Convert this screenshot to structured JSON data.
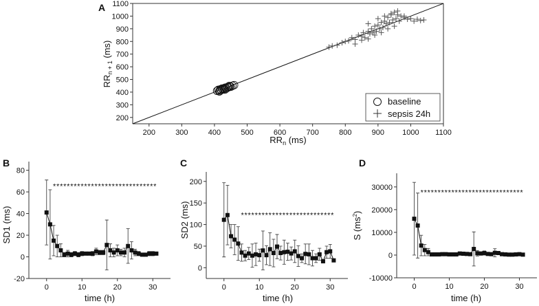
{
  "chart_data": [
    {
      "id": "A",
      "type": "scatter",
      "panel_label": "A",
      "xlabel_main": "RR",
      "xlabel_sub": "n",
      "xlabel_unit": " (ms)",
      "ylabel_main": "RR",
      "ylabel_sub": "n + 1",
      "ylabel_unit": " (ms)",
      "xlim": [
        150,
        1100
      ],
      "ylim": [
        150,
        1100
      ],
      "xticks": [
        200,
        300,
        400,
        500,
        600,
        700,
        800,
        900,
        1000,
        1100
      ],
      "yticks": [
        200,
        300,
        400,
        500,
        600,
        700,
        800,
        900,
        1000,
        1100
      ],
      "identity_line": true,
      "legend": {
        "placement": "bottom-right",
        "entries": [
          "baseline",
          "sepsis 24h"
        ]
      },
      "series": [
        {
          "name": "baseline",
          "marker": "circle",
          "x": [
            408,
            412,
            415,
            418,
            420,
            423,
            425,
            428,
            430,
            433,
            436,
            440,
            443,
            447,
            450,
            455,
            460,
            416,
            432,
            445
          ],
          "y": [
            410,
            418,
            405,
            422,
            415,
            428,
            420,
            430,
            425,
            435,
            428,
            440,
            438,
            445,
            442,
            450,
            455,
            412,
            420,
            448
          ]
        },
        {
          "name": "sepsis 24h",
          "marker": "plus",
          "x": [
            750,
            760,
            775,
            790,
            800,
            810,
            820,
            830,
            840,
            850,
            855,
            860,
            870,
            875,
            880,
            885,
            890,
            895,
            900,
            905,
            910,
            915,
            920,
            925,
            930,
            935,
            940,
            945,
            950,
            955,
            960,
            965,
            970,
            980,
            990,
            1000,
            1010,
            1020,
            1030,
            1040,
            830,
            850,
            870,
            890,
            910,
            930,
            950,
            870,
            900,
            920,
            940,
            960,
            980
          ],
          "y": [
            755,
            765,
            770,
            790,
            800,
            805,
            830,
            815,
            850,
            840,
            870,
            830,
            880,
            860,
            900,
            870,
            920,
            880,
            930,
            900,
            950,
            910,
            960,
            940,
            990,
            950,
            1010,
            970,
            1030,
            980,
            1040,
            960,
            1000,
            990,
            975,
            980,
            960,
            975,
            965,
            970,
            780,
            810,
            820,
            850,
            870,
            900,
            920,
            940,
            980,
            1000,
            1020,
            1010,
            1000
          ]
        }
      ]
    },
    {
      "id": "B",
      "type": "line",
      "panel_label": "B",
      "xlabel": "time (h)",
      "ylabel": "SD1 (ms)",
      "xlim": [
        -5,
        35
      ],
      "ylim": [
        -20,
        88
      ],
      "xticks": [
        0,
        10,
        20,
        30
      ],
      "yticks": [
        -20,
        0,
        20,
        40,
        60,
        80
      ],
      "significance": "******************************",
      "sig_from": 1.8,
      "sig_y": 66,
      "x": [
        0,
        1,
        2,
        3,
        4,
        5,
        6,
        7,
        8,
        9,
        10,
        11,
        12,
        13,
        14,
        15,
        16,
        17,
        18,
        19,
        20,
        21,
        22,
        23,
        24,
        25,
        26,
        27,
        28,
        29,
        30,
        31
      ],
      "y": [
        41,
        30,
        15,
        10,
        6,
        2,
        3,
        2,
        3,
        2,
        3,
        3,
        3,
        3,
        5,
        4,
        4,
        11,
        6,
        4,
        6,
        4,
        4,
        10,
        6,
        4,
        3,
        2,
        2,
        3,
        3,
        3
      ],
      "err": [
        30,
        32,
        14,
        10,
        6,
        2,
        3,
        2,
        2,
        2,
        2,
        1,
        1,
        2,
        3,
        2,
        2,
        23,
        6,
        4,
        5,
        3,
        4,
        16,
        8,
        3,
        2,
        1,
        1,
        2,
        2,
        1
      ]
    },
    {
      "id": "C",
      "type": "line",
      "panel_label": "C",
      "xlabel": "time (h)",
      "ylabel": "SD2 (ms)",
      "xlim": [
        -5,
        35
      ],
      "ylim": [
        -25,
        222
      ],
      "xticks": [
        0,
        10,
        20,
        30
      ],
      "yticks": [
        0,
        50,
        100,
        150,
        200
      ],
      "significance": "***************************",
      "sig_from": 4.8,
      "sig_y": 124,
      "x": [
        0,
        1,
        2,
        3,
        4,
        5,
        6,
        7,
        8,
        9,
        10,
        11,
        12,
        13,
        14,
        15,
        16,
        17,
        18,
        19,
        20,
        21,
        22,
        23,
        24,
        25,
        26,
        27,
        28,
        29,
        30,
        31
      ],
      "y": [
        111,
        122,
        73,
        65,
        56,
        35,
        28,
        33,
        28,
        31,
        29,
        40,
        29,
        43,
        34,
        49,
        34,
        36,
        37,
        33,
        38,
        27,
        22,
        32,
        31,
        22,
        22,
        31,
        15,
        36,
        38,
        17
      ],
      "err": [
        86,
        69,
        27,
        35,
        39,
        20,
        12,
        14,
        27,
        26,
        14,
        45,
        22,
        38,
        32,
        28,
        16,
        28,
        20,
        15,
        26,
        24,
        10,
        23,
        24,
        18,
        10,
        14,
        4,
        14,
        16,
        0
      ]
    },
    {
      "id": "D",
      "type": "line",
      "panel_label": "D",
      "xlabel": "time (h)",
      "ylabel_main": "S (ms",
      "ylabel_sup": "2",
      "ylabel_end": ")",
      "xlim": [
        -5,
        35
      ],
      "ylim": [
        -10000,
        36000
      ],
      "xticks": [
        0,
        10,
        20,
        30
      ],
      "yticks": [
        -10000,
        0,
        10000,
        20000,
        30000
      ],
      "significance": "******************************",
      "sig_from": 1.8,
      "sig_y": 28000,
      "x": [
        0,
        1,
        2,
        3,
        4,
        5,
        6,
        7,
        8,
        9,
        10,
        11,
        12,
        13,
        14,
        15,
        16,
        17,
        18,
        19,
        20,
        21,
        22,
        23,
        24,
        25,
        26,
        27,
        28,
        29,
        30,
        31
      ],
      "y": [
        16000,
        13000,
        4200,
        2200,
        1300,
        300,
        300,
        300,
        400,
        400,
        300,
        300,
        300,
        700,
        600,
        500,
        400,
        2700,
        800,
        700,
        900,
        500,
        400,
        1000,
        900,
        400,
        300,
        200,
        200,
        300,
        400,
        200
      ],
      "err": [
        16000,
        14300,
        4500,
        2500,
        1600,
        300,
        200,
        200,
        300,
        300,
        200,
        200,
        200,
        500,
        300,
        200,
        200,
        7500,
        1200,
        700,
        900,
        300,
        300,
        1800,
        700,
        300,
        200,
        200,
        200,
        300,
        300,
        200
      ]
    }
  ]
}
